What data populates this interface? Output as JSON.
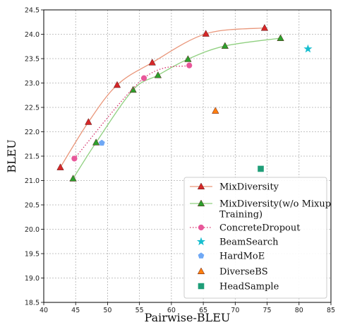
{
  "chart_data": {
    "type": "scatter",
    "xlabel": "Pairwise-BLEU",
    "ylabel": "BLEU",
    "xlim": [
      40,
      85
    ],
    "ylim": [
      18.5,
      24.5
    ],
    "xticks": [
      "40",
      "45",
      "50",
      "55",
      "60",
      "65",
      "70",
      "75",
      "80",
      "85"
    ],
    "yticks": [
      "18.5",
      "19.0",
      "19.5",
      "20.0",
      "20.5",
      "21.0",
      "21.5",
      "22.0",
      "22.5",
      "23.0",
      "23.5",
      "24.0",
      "24.5"
    ],
    "grid": true,
    "legend_position": "lower-right",
    "series": [
      {
        "name": "MixDiversity",
        "kind": "line-marker",
        "marker": "triangle",
        "color": "#d62728",
        "line_color": "#e9967a",
        "line_style": "solid",
        "points": [
          [
            42.6,
            21.27
          ],
          [
            47.0,
            22.2
          ],
          [
            51.5,
            22.96
          ],
          [
            57.0,
            23.42
          ],
          [
            65.4,
            24.01
          ],
          [
            74.6,
            24.13
          ]
        ]
      },
      {
        "name": "MixDiversity(w/o Mixup Training)",
        "legend_lines": [
          "MixDiversity(w/o Mixup",
          "Training)"
        ],
        "kind": "line-marker",
        "marker": "triangle",
        "color": "#2ca02c",
        "line_color": "#90d080",
        "line_style": "solid",
        "points": [
          [
            44.6,
            21.04
          ],
          [
            48.2,
            21.78
          ],
          [
            54.0,
            22.86
          ],
          [
            57.9,
            23.16
          ],
          [
            62.6,
            23.49
          ],
          [
            68.4,
            23.76
          ],
          [
            77.1,
            23.92
          ]
        ]
      },
      {
        "name": "ConcreteDropout",
        "kind": "line-marker",
        "marker": "circle",
        "color": "#e8579a",
        "line_color": "#d6336c",
        "line_style": "dotted",
        "points": [
          [
            44.8,
            21.45
          ],
          [
            55.7,
            23.1
          ],
          [
            62.8,
            23.36
          ]
        ]
      },
      {
        "name": "BeamSearch",
        "kind": "marker",
        "marker": "star",
        "color": "#17becf",
        "points": [
          [
            81.4,
            23.7
          ]
        ]
      },
      {
        "name": "HardMoE",
        "kind": "marker",
        "marker": "pentagon",
        "color": "#6fa8f5",
        "points": [
          [
            49.1,
            21.77
          ]
        ]
      },
      {
        "name": "DiverseBS",
        "kind": "marker",
        "marker": "triangle",
        "color": "#ff7f0e",
        "points": [
          [
            66.9,
            22.43
          ]
        ]
      },
      {
        "name": "HeadSample",
        "kind": "marker",
        "marker": "square",
        "color": "#1f9e78",
        "points": [
          [
            74.0,
            21.24
          ]
        ]
      }
    ]
  }
}
